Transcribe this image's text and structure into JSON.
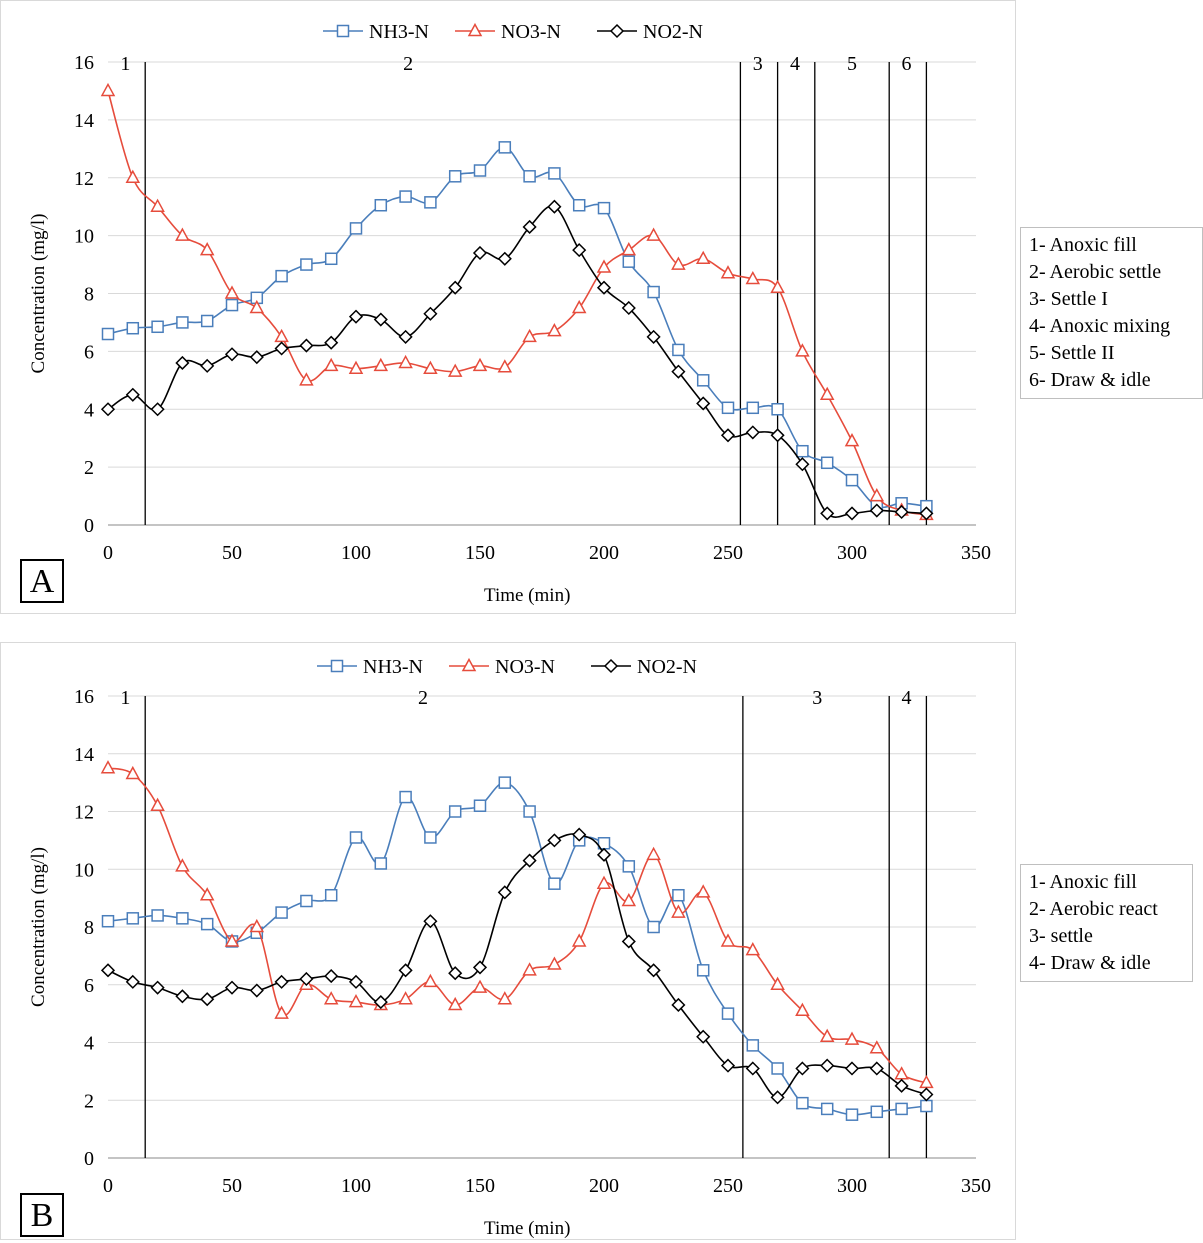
{
  "chart_data": [
    {
      "type": "line",
      "panel_label": "A",
      "xlabel": "Time  (min)",
      "ylabel": "Concentration  (mg/l)",
      "xlim": [
        0,
        350
      ],
      "ylim": [
        0,
        16
      ],
      "x_ticks": [
        "0",
        "50",
        "100",
        "150",
        "200",
        "250",
        "300",
        "350"
      ],
      "y_ticks": [
        "0",
        "2",
        "4",
        "6",
        "8",
        "10",
        "12",
        "14",
        "16"
      ],
      "grid": "horizontal",
      "legend_position": "top",
      "series": [
        {
          "name": "NH3-N",
          "color": "#4a7ebb",
          "marker": "square",
          "x": [
            0,
            10,
            20,
            30,
            40,
            50,
            60,
            70,
            80,
            90,
            100,
            110,
            120,
            130,
            140,
            150,
            160,
            170,
            180,
            190,
            200,
            210,
            220,
            230,
            240,
            250,
            260,
            270,
            280,
            290,
            300,
            310,
            320,
            330
          ],
          "y": [
            6.6,
            6.8,
            6.85,
            7.0,
            7.05,
            7.6,
            7.85,
            8.6,
            9.0,
            9.2,
            10.25,
            11.05,
            11.35,
            11.15,
            12.05,
            12.25,
            13.05,
            12.05,
            12.15,
            11.05,
            10.95,
            9.1,
            8.05,
            6.05,
            5.0,
            4.05,
            4.05,
            4.0,
            2.55,
            2.15,
            1.55,
            0.65,
            0.75,
            0.65
          ]
        },
        {
          "name": "NO3-N",
          "color": "#e64c3c",
          "marker": "triangle",
          "x": [
            0,
            10,
            20,
            30,
            40,
            50,
            60,
            70,
            80,
            90,
            100,
            110,
            120,
            130,
            140,
            150,
            160,
            170,
            180,
            190,
            200,
            210,
            220,
            230,
            240,
            250,
            260,
            270,
            280,
            290,
            300,
            310,
            320,
            330
          ],
          "y": [
            15.0,
            12.0,
            11.0,
            10.0,
            9.5,
            8.0,
            7.5,
            6.5,
            5.0,
            5.5,
            5.4,
            5.5,
            5.6,
            5.4,
            5.3,
            5.5,
            5.45,
            6.5,
            6.7,
            7.5,
            8.9,
            9.5,
            10.0,
            9.0,
            9.2,
            8.7,
            8.5,
            8.2,
            6.0,
            4.5,
            2.9,
            1.0,
            0.5,
            0.35
          ]
        },
        {
          "name": "NO2-N",
          "color": "#000000",
          "marker": "diamond",
          "x": [
            0,
            10,
            20,
            30,
            40,
            50,
            60,
            70,
            80,
            90,
            100,
            110,
            120,
            130,
            140,
            150,
            160,
            170,
            180,
            190,
            200,
            210,
            220,
            230,
            240,
            250,
            260,
            270,
            280,
            290,
            300,
            310,
            320,
            330
          ],
          "y": [
            4.0,
            4.5,
            4.0,
            5.6,
            5.5,
            5.9,
            5.8,
            6.1,
            6.2,
            6.3,
            7.2,
            7.1,
            6.5,
            7.3,
            8.2,
            9.4,
            9.2,
            10.3,
            11.0,
            9.5,
            8.2,
            7.5,
            6.5,
            5.3,
            4.2,
            3.1,
            3.2,
            3.1,
            2.1,
            0.4,
            0.4,
            0.5,
            0.45,
            0.4
          ]
        }
      ],
      "phase_lines_x": [
        15,
        255,
        270,
        285,
        315,
        330
      ],
      "phase_labels": [
        {
          "label": "1",
          "x": 7
        },
        {
          "label": "2",
          "x": 121
        },
        {
          "label": "3",
          "x": 262
        },
        {
          "label": "4",
          "x": 277
        },
        {
          "label": "5",
          "x": 300
        },
        {
          "label": "6",
          "x": 322
        }
      ],
      "phase_legend": [
        "1- Anoxic fill",
        "2- Aerobic settle",
        "3- Settle I",
        "4- Anoxic mixing",
        "5- Settle II",
        "6- Draw & idle"
      ]
    },
    {
      "type": "line",
      "panel_label": "B",
      "xlabel": "Time  (min)",
      "ylabel": "Concentration  (mg/l)",
      "xlim": [
        0,
        350
      ],
      "ylim": [
        0,
        16
      ],
      "x_ticks": [
        "0",
        "50",
        "100",
        "150",
        "200",
        "250",
        "300",
        "350"
      ],
      "y_ticks": [
        "0",
        "2",
        "4",
        "6",
        "8",
        "10",
        "12",
        "14",
        "16"
      ],
      "grid": "horizontal",
      "legend_position": "top",
      "series": [
        {
          "name": "NH3-N",
          "color": "#4a7ebb",
          "marker": "square",
          "x": [
            0,
            10,
            20,
            30,
            40,
            50,
            60,
            70,
            80,
            90,
            100,
            110,
            120,
            130,
            140,
            150,
            160,
            170,
            180,
            190,
            200,
            210,
            220,
            230,
            240,
            250,
            260,
            270,
            280,
            290,
            300,
            310,
            320,
            330
          ],
          "y": [
            8.2,
            8.3,
            8.4,
            8.3,
            8.1,
            7.5,
            7.8,
            8.5,
            8.9,
            9.1,
            11.1,
            10.2,
            12.5,
            11.1,
            12.0,
            12.2,
            13.0,
            12.0,
            9.5,
            11.0,
            10.9,
            10.1,
            8.0,
            9.1,
            6.5,
            5.0,
            3.9,
            3.1,
            1.9,
            1.7,
            1.5,
            1.6,
            1.7,
            1.8
          ]
        },
        {
          "name": "NO3-N",
          "color": "#e64c3c",
          "marker": "triangle",
          "x": [
            0,
            10,
            20,
            30,
            40,
            50,
            60,
            70,
            80,
            90,
            100,
            110,
            120,
            130,
            140,
            150,
            160,
            170,
            180,
            190,
            200,
            210,
            220,
            230,
            240,
            250,
            260,
            270,
            280,
            290,
            300,
            310,
            320,
            330
          ],
          "y": [
            13.5,
            13.3,
            12.2,
            10.1,
            9.1,
            7.5,
            8.0,
            5.0,
            6.0,
            5.5,
            5.4,
            5.3,
            5.5,
            6.1,
            5.3,
            5.9,
            5.5,
            6.5,
            6.7,
            7.5,
            9.5,
            8.9,
            10.5,
            8.5,
            9.2,
            7.5,
            7.2,
            6.0,
            5.1,
            4.2,
            4.1,
            3.8,
            2.9,
            2.6
          ]
        },
        {
          "name": "NO2-N",
          "color": "#000000",
          "marker": "diamond",
          "x": [
            0,
            10,
            20,
            30,
            40,
            50,
            60,
            70,
            80,
            90,
            100,
            110,
            120,
            130,
            140,
            150,
            160,
            170,
            180,
            190,
            200,
            210,
            220,
            230,
            240,
            250,
            260,
            270,
            280,
            290,
            300,
            310,
            320,
            330
          ],
          "y": [
            6.5,
            6.1,
            5.9,
            5.6,
            5.5,
            5.9,
            5.8,
            6.1,
            6.2,
            6.3,
            6.1,
            5.4,
            6.5,
            8.2,
            6.4,
            6.6,
            9.2,
            10.3,
            11.0,
            11.2,
            10.5,
            7.5,
            6.5,
            5.3,
            4.2,
            3.2,
            3.1,
            2.1,
            3.1,
            3.2,
            3.1,
            3.1,
            2.5,
            2.2
          ]
        }
      ],
      "phase_lines_x": [
        15,
        256,
        315,
        330
      ],
      "phase_labels": [
        {
          "label": "1",
          "x": 7
        },
        {
          "label": "2",
          "x": 127
        },
        {
          "label": "3",
          "x": 286
        },
        {
          "label": "4",
          "x": 322
        }
      ],
      "phase_legend": [
        "1- Anoxic fill",
        "2- Aerobic react",
        "3- settle",
        "4- Draw & idle"
      ]
    }
  ]
}
